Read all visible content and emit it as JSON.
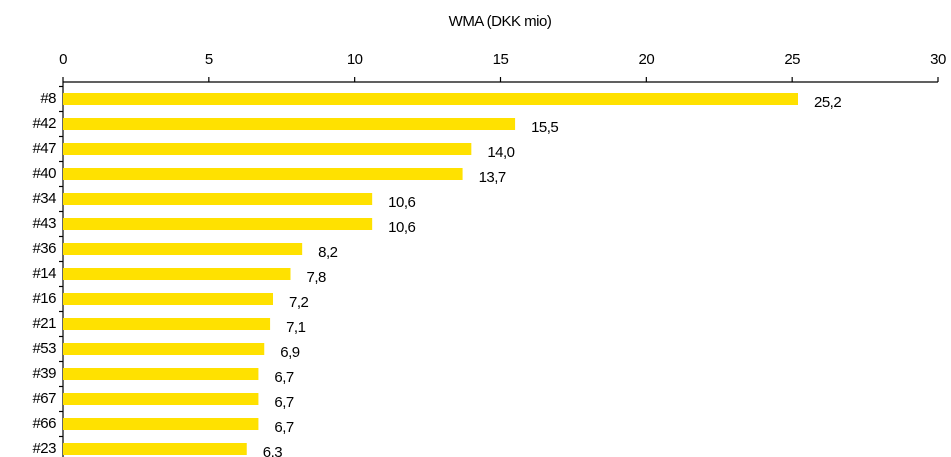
{
  "chart_data": {
    "type": "bar",
    "orientation": "horizontal",
    "x_label": "WMA (DKK mio)",
    "categories": [
      "#8",
      "#42",
      "#47",
      "#40",
      "#34",
      "#43",
      "#36",
      "#14",
      "#16",
      "#21",
      "#53",
      "#39",
      "#67",
      "#66",
      "#23"
    ],
    "values": [
      25.2,
      15.5,
      14.0,
      13.7,
      10.6,
      10.6,
      8.2,
      7.8,
      7.2,
      7.1,
      6.9,
      6.7,
      6.7,
      6.7,
      6.3
    ],
    "value_labels": [
      "25,2",
      "15,5",
      "14,0",
      "13,7",
      "10,6",
      "10,6",
      "8,2",
      "7,8",
      "7,2",
      "7,1",
      "6,9",
      "6,7",
      "6,7",
      "6,7",
      "6,3"
    ],
    "color": "#FFE100",
    "xlim": [
      0,
      30
    ],
    "xticks": [
      0,
      5,
      10,
      15,
      20,
      25,
      30
    ],
    "grid": false
  }
}
